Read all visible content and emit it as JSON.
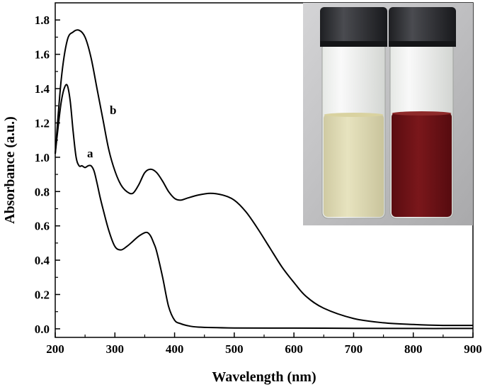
{
  "chart_data": {
    "type": "line",
    "xlabel": "Wavelength (nm)",
    "ylabel": "Absorbance (a.u.)",
    "xlim": [
      200,
      900
    ],
    "ylim": [
      -0.05,
      1.9
    ],
    "x_ticks": [
      200,
      300,
      400,
      500,
      600,
      700,
      800,
      900
    ],
    "y_ticks": [
      0.0,
      0.2,
      0.4,
      0.6,
      0.8,
      1.0,
      1.2,
      1.4,
      1.6,
      1.8
    ],
    "x_tick_labels": [
      "200",
      "300",
      "400",
      "500",
      "600",
      "700",
      "800",
      "900"
    ],
    "y_tick_labels": [
      "0.0",
      "0.2",
      "0.4",
      "0.6",
      "0.8",
      "1.0",
      "1.2",
      "1.4",
      "1.6",
      "1.8"
    ],
    "grid": false,
    "series": [
      {
        "name": "a",
        "x": [
          200,
          205,
          210,
          215,
          220,
          225,
          230,
          235,
          240,
          245,
          250,
          255,
          260,
          265,
          270,
          275,
          280,
          290,
          300,
          310,
          320,
          330,
          340,
          350,
          355,
          360,
          365,
          370,
          380,
          390,
          400,
          410,
          420,
          440,
          500,
          600,
          700,
          800,
          900
        ],
        "y": [
          1.02,
          1.18,
          1.32,
          1.4,
          1.42,
          1.33,
          1.15,
          1.0,
          0.95,
          0.95,
          0.94,
          0.95,
          0.95,
          0.92,
          0.85,
          0.77,
          0.7,
          0.57,
          0.48,
          0.46,
          0.48,
          0.51,
          0.54,
          0.56,
          0.56,
          0.54,
          0.5,
          0.45,
          0.3,
          0.13,
          0.05,
          0.03,
          0.02,
          0.01,
          0.005,
          0.004,
          0.003,
          0.002,
          0.002
        ]
      },
      {
        "name": "b",
        "x": [
          200,
          210,
          220,
          230,
          240,
          250,
          260,
          270,
          280,
          290,
          300,
          310,
          320,
          330,
          340,
          350,
          360,
          370,
          380,
          390,
          400,
          410,
          420,
          440,
          460,
          480,
          500,
          520,
          540,
          560,
          580,
          600,
          620,
          650,
          700,
          750,
          800,
          850,
          900
        ],
        "y": [
          1.02,
          1.45,
          1.68,
          1.73,
          1.74,
          1.7,
          1.58,
          1.4,
          1.22,
          1.04,
          0.92,
          0.84,
          0.8,
          0.79,
          0.84,
          0.91,
          0.93,
          0.91,
          0.86,
          0.8,
          0.76,
          0.75,
          0.76,
          0.78,
          0.79,
          0.78,
          0.75,
          0.68,
          0.58,
          0.47,
          0.36,
          0.27,
          0.19,
          0.12,
          0.06,
          0.035,
          0.025,
          0.02,
          0.02
        ]
      }
    ]
  },
  "inset": {
    "description_colors": {
      "vial_left_liquid": "#ded9b2",
      "vial_right_liquid": "#6b1216",
      "cap": "#2b2c30",
      "background": "#b9b9bb"
    }
  }
}
